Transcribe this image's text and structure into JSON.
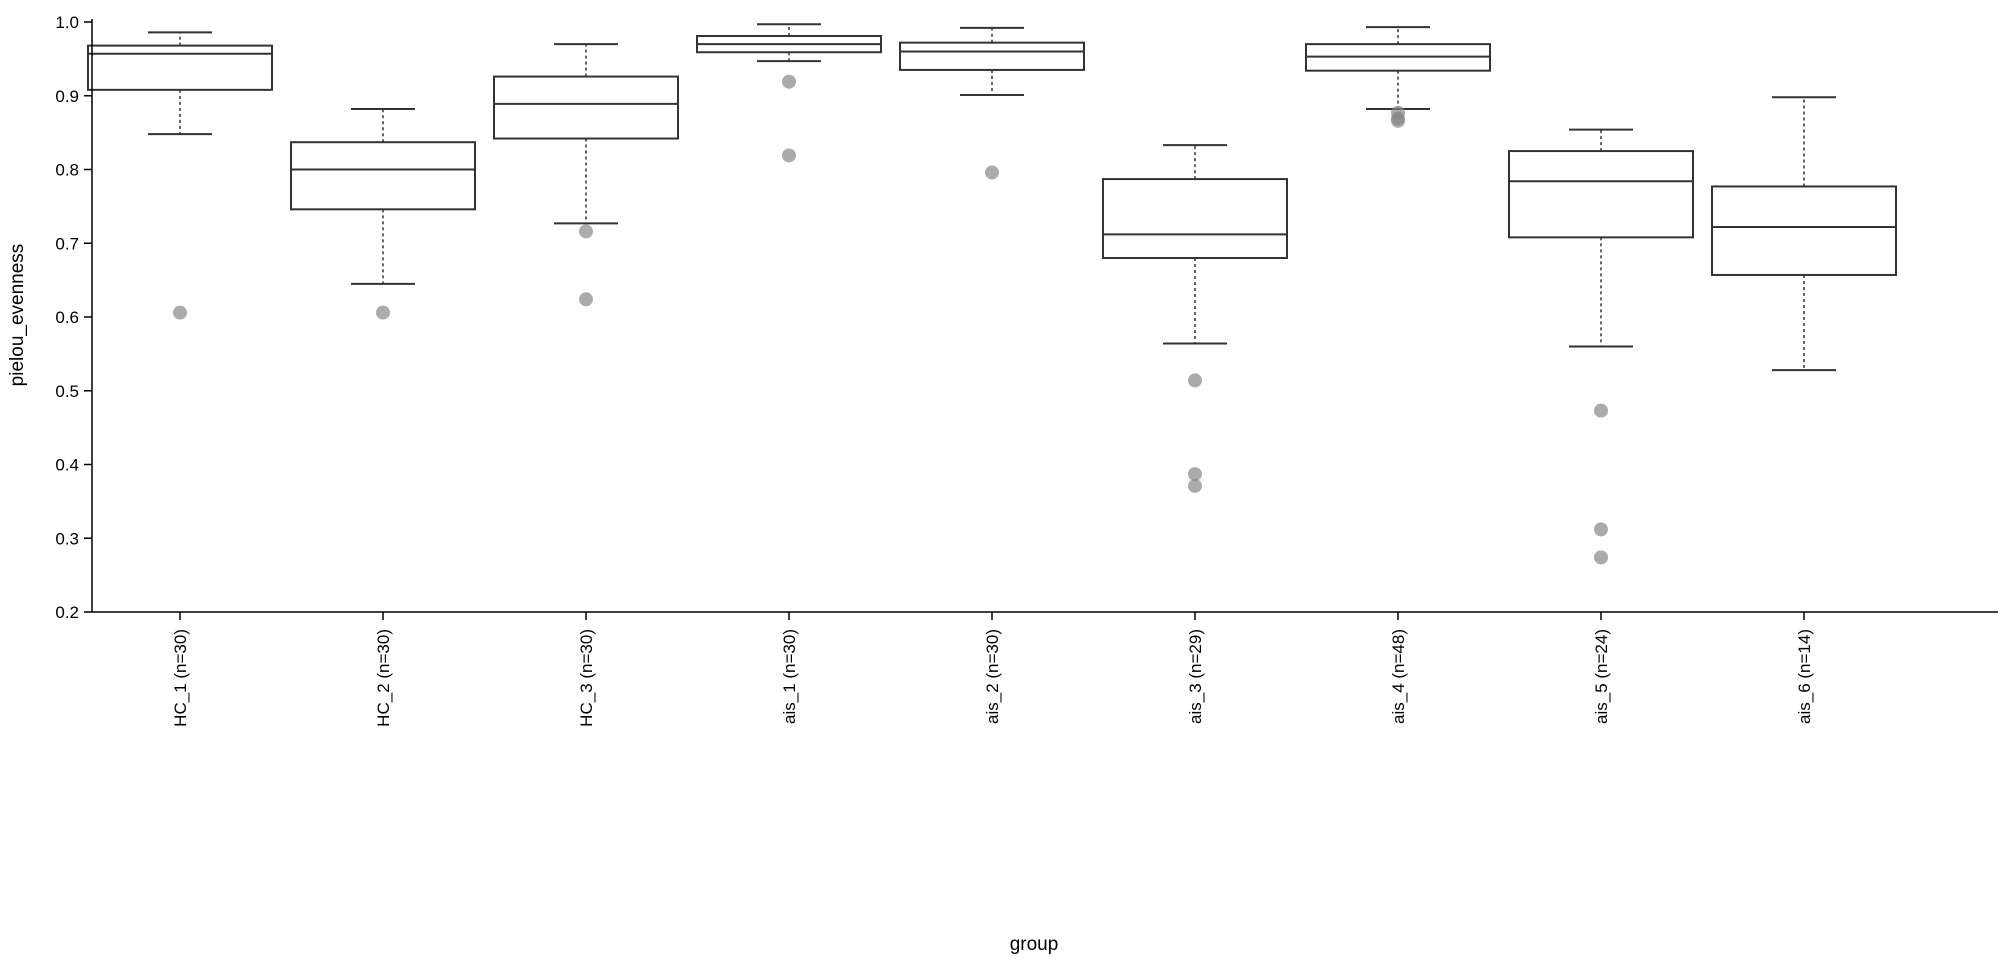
{
  "chart_data": {
    "type": "boxplot",
    "title": "",
    "xlabel": "group",
    "ylabel": "pielou_evenness",
    "ylim": [
      0.2,
      1.0
    ],
    "yticks": [
      "0.2",
      "0.3",
      "0.4",
      "0.5",
      "0.6",
      "0.7",
      "0.8",
      "0.9",
      "1.0"
    ],
    "grid": false,
    "box_color": "#333333",
    "outlier_color": "#888888",
    "groups": [
      {
        "label": "HC_1 (n=30)",
        "whisker_low": 0.848,
        "q1": 0.908,
        "median": 0.957,
        "q3": 0.968,
        "whisker_high": 0.986,
        "outliers": [
          0.606
        ]
      },
      {
        "label": "HC_2 (n=30)",
        "whisker_low": 0.645,
        "q1": 0.746,
        "median": 0.8,
        "q3": 0.837,
        "whisker_high": 0.882,
        "outliers": [
          0.606
        ]
      },
      {
        "label": "HC_3 (n=30)",
        "whisker_low": 0.727,
        "q1": 0.842,
        "median": 0.889,
        "q3": 0.926,
        "whisker_high": 0.97,
        "outliers": [
          0.716,
          0.624
        ]
      },
      {
        "label": "ais_1 (n=30)",
        "whisker_low": 0.947,
        "q1": 0.959,
        "median": 0.97,
        "q3": 0.981,
        "whisker_high": 0.997,
        "outliers": [
          0.919,
          0.819
        ]
      },
      {
        "label": "ais_2 (n=30)",
        "whisker_low": 0.901,
        "q1": 0.935,
        "median": 0.96,
        "q3": 0.972,
        "whisker_high": 0.992,
        "outliers": [
          0.796
        ]
      },
      {
        "label": "ais_3 (n=29)",
        "whisker_low": 0.564,
        "q1": 0.68,
        "median": 0.712,
        "q3": 0.787,
        "whisker_high": 0.833,
        "outliers": [
          0.514,
          0.387,
          0.371
        ]
      },
      {
        "label": "ais_4 (n=48)",
        "whisker_low": 0.882,
        "q1": 0.934,
        "median": 0.953,
        "q3": 0.97,
        "whisker_high": 0.993,
        "outliers": [
          0.877,
          0.869,
          0.866
        ]
      },
      {
        "label": "ais_5 (n=24)",
        "whisker_low": 0.56,
        "q1": 0.708,
        "median": 0.784,
        "q3": 0.825,
        "whisker_high": 0.854,
        "outliers": [
          0.473,
          0.312,
          0.274
        ]
      },
      {
        "label": "ais_6 (n=14)",
        "whisker_low": 0.528,
        "q1": 0.657,
        "median": 0.722,
        "q3": 0.777,
        "whisker_high": 0.898,
        "outliers": []
      }
    ]
  }
}
